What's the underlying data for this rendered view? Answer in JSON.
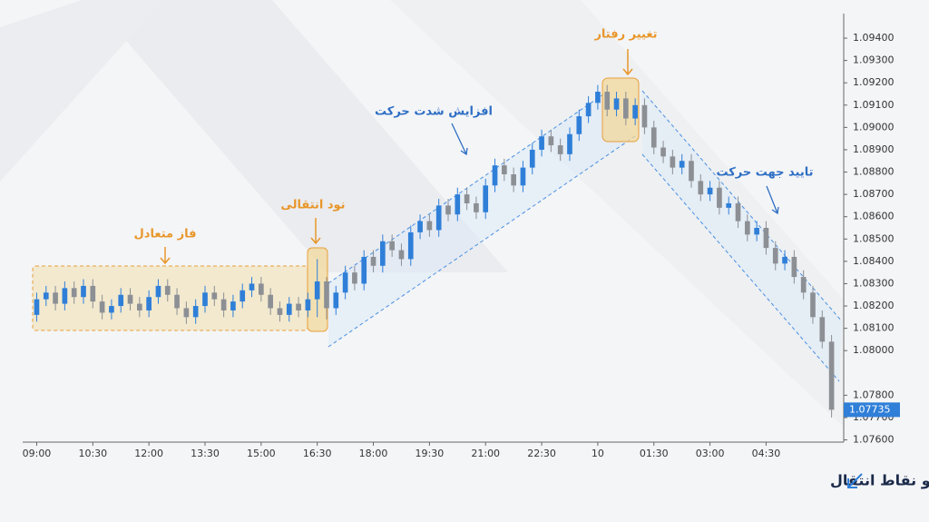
{
  "chart_data": {
    "type": "candlestick",
    "title": "پرایس اکشن NDS: تحلیل رفتار قیمت از طریق فازها و نقاط انتقال",
    "annotations": [
      "فاز متعادل",
      "نود انتقالی",
      "افزایش شدت حرکت",
      "تغییر رفتار",
      "تایید جهت حرکت"
    ],
    "up_color": "#2f7fd8",
    "down_color": "#8c8f94",
    "open": [
      1.0816,
      1.0823,
      1.0826,
      1.0821,
      1.0828,
      1.0824,
      1.0829,
      1.0822,
      1.0817,
      1.082,
      1.0825,
      1.0821,
      1.0818,
      1.0824,
      1.0829,
      1.0825,
      1.0819,
      1.0815,
      1.082,
      1.0826,
      1.0823,
      1.0818,
      1.0822,
      1.0827,
      1.083,
      1.0825,
      1.0819,
      1.0816,
      1.0821,
      1.0818,
      1.0823,
      1.0831,
      1.0819,
      1.0826,
      1.0835,
      1.083,
      1.0842,
      1.0838,
      1.0849,
      1.0845,
      1.0841,
      1.0853,
      1.0858,
      1.0854,
      1.0865,
      1.0861,
      1.087,
      1.0866,
      1.0862,
      1.0874,
      1.0883,
      1.0879,
      1.0874,
      1.0882,
      1.089,
      1.0896,
      1.0892,
      1.0888,
      1.0897,
      1.0905,
      1.0911,
      1.0916,
      1.0908,
      1.0913,
      1.0904,
      1.091,
      1.09,
      1.0891,
      1.0887,
      1.0882,
      1.0885,
      1.0876,
      1.087,
      1.0873,
      1.0864,
      1.0866,
      1.0858,
      1.0852,
      1.0855,
      1.0846,
      1.0839,
      1.0842,
      1.0833,
      1.0826,
      1.0815,
      1.0804
    ],
    "close": [
      1.0823,
      1.0826,
      1.0821,
      1.0828,
      1.0824,
      1.0829,
      1.0822,
      1.0817,
      1.082,
      1.0825,
      1.0821,
      1.0818,
      1.0824,
      1.0829,
      1.0825,
      1.0819,
      1.0815,
      1.082,
      1.0826,
      1.0823,
      1.0818,
      1.0822,
      1.0827,
      1.083,
      1.0825,
      1.0819,
      1.0816,
      1.0821,
      1.0818,
      1.0823,
      1.0831,
      1.0819,
      1.0826,
      1.0835,
      1.083,
      1.0842,
      1.0838,
      1.0849,
      1.0845,
      1.0841,
      1.0853,
      1.0858,
      1.0854,
      1.0865,
      1.0861,
      1.087,
      1.0866,
      1.0862,
      1.0874,
      1.0883,
      1.0879,
      1.0874,
      1.0882,
      1.089,
      1.0896,
      1.0892,
      1.0888,
      1.0897,
      1.0905,
      1.0911,
      1.0916,
      1.0908,
      1.0913,
      1.0904,
      1.091,
      1.09,
      1.0891,
      1.0887,
      1.0882,
      1.0885,
      1.0876,
      1.087,
      1.0873,
      1.0864,
      1.0866,
      1.0858,
      1.0852,
      1.0855,
      1.0846,
      1.0839,
      1.0842,
      1.0833,
      1.0826,
      1.0815,
      1.0804,
      1.07735
    ],
    "high": [
      1.0826,
      1.0829,
      1.0829,
      1.0831,
      1.0831,
      1.0832,
      1.0832,
      1.0825,
      1.0823,
      1.0828,
      1.0828,
      1.0824,
      1.0827,
      1.0832,
      1.0832,
      1.0828,
      1.0822,
      1.0823,
      1.0829,
      1.0829,
      1.0826,
      1.0825,
      1.083,
      1.0833,
      1.0833,
      1.0828,
      1.0822,
      1.0824,
      1.0824,
      1.0826,
      1.0841,
      1.0833,
      1.0829,
      1.0838,
      1.0838,
      1.0845,
      1.0845,
      1.0852,
      1.0852,
      1.0848,
      1.0856,
      1.0861,
      1.0861,
      1.0868,
      1.0868,
      1.0873,
      1.0873,
      1.0869,
      1.0877,
      1.0886,
      1.0886,
      1.0882,
      1.0885,
      1.0893,
      1.0899,
      1.0899,
      1.0895,
      1.09,
      1.0908,
      1.0914,
      1.0919,
      1.0919,
      1.0916,
      1.0916,
      1.0913,
      1.0913,
      1.0903,
      1.0894,
      1.089,
      1.0888,
      1.0888,
      1.0879,
      1.0876,
      1.0876,
      1.0869,
      1.0869,
      1.0861,
      1.0858,
      1.0858,
      1.0849,
      1.0845,
      1.0845,
      1.0836,
      1.0829,
      1.0818,
      1.0807
    ],
    "low": [
      1.0813,
      1.082,
      1.0818,
      1.0818,
      1.0821,
      1.0821,
      1.0819,
      1.0814,
      1.0814,
      1.0817,
      1.0818,
      1.0815,
      1.0815,
      1.0821,
      1.0822,
      1.0816,
      1.0812,
      1.0812,
      1.0817,
      1.082,
      1.0815,
      1.0815,
      1.0819,
      1.0824,
      1.0822,
      1.0816,
      1.0813,
      1.0813,
      1.0815,
      1.0815,
      1.0815,
      1.0814,
      1.0816,
      1.0823,
      1.0827,
      1.0827,
      1.0835,
      1.0835,
      1.0842,
      1.0838,
      1.0838,
      1.085,
      1.0851,
      1.0851,
      1.0858,
      1.0858,
      1.0863,
      1.0859,
      1.0859,
      1.0871,
      1.0876,
      1.0871,
      1.0871,
      1.0879,
      1.0887,
      1.0889,
      1.0885,
      1.0885,
      1.0894,
      1.0902,
      1.0908,
      1.0905,
      1.0905,
      1.0901,
      1.0901,
      1.0897,
      1.0888,
      1.0884,
      1.0879,
      1.0879,
      1.0873,
      1.0867,
      1.0867,
      1.0861,
      1.0861,
      1.0855,
      1.0849,
      1.0849,
      1.0843,
      1.0836,
      1.0836,
      1.083,
      1.0823,
      1.0812,
      1.0801,
      1.077
    ],
    "last_price": 1.07735,
    "xlim": [
      -1.5,
      86.3
    ],
    "xticks": [
      {
        "value": 0,
        "label": "09:00"
      },
      {
        "value": 6,
        "label": "10:30"
      },
      {
        "value": 12,
        "label": "12:00"
      },
      {
        "value": 18,
        "label": "13:30"
      },
      {
        "value": 24,
        "label": "15:00"
      },
      {
        "value": 30,
        "label": "16:30"
      },
      {
        "value": 36,
        "label": "18:00"
      },
      {
        "value": 42,
        "label": "19:30"
      },
      {
        "value": 48,
        "label": "21:00"
      },
      {
        "value": 54,
        "label": "22:30"
      },
      {
        "value": 60,
        "label": "10"
      },
      {
        "value": 66,
        "label": "01:30"
      },
      {
        "value": 72,
        "label": "03:00"
      },
      {
        "value": 78,
        "label": "04:30"
      }
    ],
    "ylim": [
      1.0759,
      1.0951
    ],
    "yticks": [
      {
        "value": 1.094,
        "label": "1.09400"
      },
      {
        "value": 1.093,
        "label": "1.09300"
      },
      {
        "value": 1.092,
        "label": "1.09200"
      },
      {
        "value": 1.091,
        "label": "1.09100"
      },
      {
        "value": 1.09,
        "label": "1.09000"
      },
      {
        "value": 1.089,
        "label": "1.08900"
      },
      {
        "value": 1.088,
        "label": "1.08800"
      },
      {
        "value": 1.087,
        "label": "1.08700"
      },
      {
        "value": 1.086,
        "label": "1.08600"
      },
      {
        "value": 1.085,
        "label": "1.08500"
      },
      {
        "value": 1.084,
        "label": "1.08400"
      },
      {
        "value": 1.083,
        "label": "1.08300"
      },
      {
        "value": 1.082,
        "label": "1.08200"
      },
      {
        "value": 1.081,
        "label": "1.08100"
      },
      {
        "value": 1.08,
        "label": "1.08000"
      },
      {
        "value": 1.078,
        "label": "1.07800"
      },
      {
        "value": 1.077,
        "label": "1.07700"
      },
      {
        "value": 1.076,
        "label": "1.07600"
      }
    ]
  }
}
